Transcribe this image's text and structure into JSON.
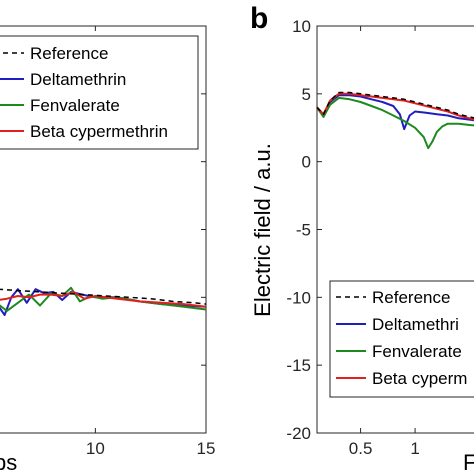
{
  "figure": {
    "panel_b_letter": "b"
  },
  "chart_data": [
    {
      "type": "line",
      "panel": "a",
      "xlabel": "ps",
      "ylabel": "",
      "xlim": [
        5.6,
        15
      ],
      "ylim": [
        -20,
        10
      ],
      "x_ticks": [
        "10",
        "15"
      ],
      "x_tick_values": [
        10,
        15
      ],
      "legend": [
        "Reference",
        "Deltamethrin",
        "Fenvalerate",
        "Beta cypermethrin"
      ],
      "legend_position": "top-right",
      "series": [
        {
          "name": "Reference",
          "color": "#000000",
          "dash": true,
          "x": [
            5.6,
            6.5,
            7.5,
            8.5,
            9.5,
            10.5,
            11.5,
            12.5,
            13.5,
            14.5,
            15
          ],
          "y": [
            -9.4,
            -9.5,
            -9.6,
            -9.7,
            -9.8,
            -9.9,
            -10.0,
            -10.1,
            -10.3,
            -10.4,
            -10.5
          ]
        },
        {
          "name": "Deltamethrin",
          "color": "#1f1fbf",
          "x": [
            5.6,
            5.9,
            6.2,
            6.5,
            6.9,
            7.3,
            7.7,
            8.1,
            8.5,
            8.9,
            9.4,
            10.0,
            11.0,
            12.0,
            13.0,
            14.0,
            15.0
          ],
          "y": [
            -10.6,
            -11.3,
            -10.0,
            -9.4,
            -10.4,
            -9.4,
            -9.7,
            -9.6,
            -10.2,
            -9.6,
            -9.8,
            -10.0,
            -10.0,
            -10.3,
            -10.5,
            -10.6,
            -10.7
          ]
        },
        {
          "name": "Fenvalerate",
          "color": "#1e8a1e",
          "x": [
            5.6,
            6.0,
            6.5,
            7.0,
            7.5,
            8.0,
            8.5,
            8.9,
            9.3,
            9.8,
            10.3,
            11.0,
            12.0,
            13.0,
            14.0,
            15.0
          ],
          "y": [
            -10.5,
            -11.0,
            -10.4,
            -9.8,
            -10.6,
            -9.7,
            -9.9,
            -9.3,
            -10.3,
            -9.9,
            -10.1,
            -10.0,
            -10.3,
            -10.5,
            -10.7,
            -10.9
          ]
        },
        {
          "name": "Beta cypermethrin",
          "color": "#e0201e",
          "x": [
            5.6,
            6.0,
            6.5,
            7.0,
            7.5,
            8.0,
            8.5,
            9.0,
            9.5,
            10.0,
            11.0,
            12.0,
            13.0,
            14.0,
            15.0
          ],
          "y": [
            -10.2,
            -10.1,
            -9.9,
            -10.0,
            -9.8,
            -9.8,
            -9.9,
            -9.6,
            -10.1,
            -9.9,
            -10.1,
            -10.3,
            -10.4,
            -10.5,
            -10.7
          ]
        }
      ]
    },
    {
      "type": "line",
      "panel": "b",
      "xlabel": "F",
      "ylabel": "Electric field / a.u.",
      "xlim": [
        0.1,
        1.66
      ],
      "ylim": [
        -20,
        10
      ],
      "x_ticks": [
        "0.5",
        "1"
      ],
      "x_tick_values": [
        0.5,
        1.0
      ],
      "y_ticks": [
        "10",
        "5",
        "0",
        "-5",
        "-10",
        "-15",
        "-20"
      ],
      "y_tick_values": [
        10,
        5,
        0,
        -5,
        -10,
        -15,
        -20
      ],
      "legend": [
        "Reference",
        "Deltamethri",
        "Fenvalerate",
        "Beta cyperm"
      ],
      "legend_position": "bottom-right",
      "series": [
        {
          "name": "Reference",
          "color": "#000000",
          "dash": true,
          "x": [
            0.1,
            0.16,
            0.22,
            0.3,
            0.4,
            0.5,
            0.6,
            0.7,
            0.8,
            0.9,
            1.0,
            1.1,
            1.2,
            1.3,
            1.4,
            1.5,
            1.66
          ],
          "y": [
            4.0,
            3.5,
            4.5,
            5.1,
            5.1,
            5.0,
            4.9,
            4.8,
            4.7,
            4.6,
            4.4,
            4.2,
            4.0,
            3.8,
            3.5,
            3.3,
            3.0
          ]
        },
        {
          "name": "Deltamethri",
          "color": "#1f1fbf",
          "x": [
            0.1,
            0.16,
            0.22,
            0.3,
            0.4,
            0.5,
            0.6,
            0.7,
            0.8,
            0.86,
            0.9,
            0.95,
            1.0,
            1.1,
            1.2,
            1.3,
            1.4,
            1.5,
            1.66
          ],
          "y": [
            4.0,
            3.4,
            4.4,
            4.9,
            4.9,
            4.8,
            4.6,
            4.4,
            4.1,
            3.5,
            2.4,
            3.4,
            3.7,
            3.6,
            3.5,
            3.4,
            3.2,
            3.1,
            2.9
          ]
        },
        {
          "name": "Fenvalerate",
          "color": "#1e8a1e",
          "x": [
            0.1,
            0.16,
            0.22,
            0.3,
            0.4,
            0.5,
            0.6,
            0.7,
            0.8,
            0.9,
            1.0,
            1.08,
            1.12,
            1.16,
            1.2,
            1.25,
            1.3,
            1.4,
            1.5,
            1.66
          ],
          "y": [
            4.0,
            3.3,
            4.2,
            4.7,
            4.6,
            4.4,
            4.1,
            3.8,
            3.4,
            3.0,
            2.5,
            1.8,
            1.0,
            1.5,
            2.2,
            2.6,
            2.8,
            2.8,
            2.7,
            2.6
          ]
        },
        {
          "name": "Beta cyperm",
          "color": "#e0201e",
          "x": [
            0.1,
            0.16,
            0.22,
            0.3,
            0.4,
            0.5,
            0.6,
            0.7,
            0.8,
            0.9,
            1.0,
            1.1,
            1.2,
            1.3,
            1.4,
            1.5,
            1.66
          ],
          "y": [
            4.0,
            3.5,
            4.5,
            5.0,
            5.0,
            4.9,
            4.8,
            4.7,
            4.6,
            4.5,
            4.3,
            4.1,
            3.9,
            3.7,
            3.4,
            3.2,
            2.9
          ]
        }
      ]
    }
  ]
}
